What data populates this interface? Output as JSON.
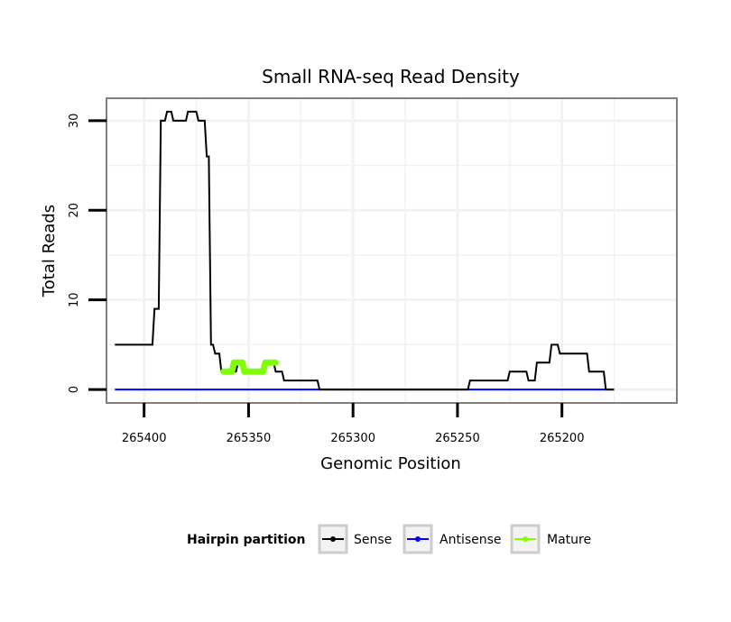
{
  "chart_data": {
    "type": "line",
    "title": "Small RNA-seq Read Density",
    "xlabel": "Genomic Position",
    "ylabel": "Total Reads",
    "x_reversed": true,
    "xlim": [
      265418,
      265145
    ],
    "ylim": [
      -1.5,
      32.5
    ],
    "x_ticks": [
      265400,
      265350,
      265300,
      265250,
      265200
    ],
    "x_tick_labels": [
      "265400",
      "265350",
      "265300",
      "265250",
      "265200"
    ],
    "y_ticks": [
      0,
      10,
      20,
      30
    ],
    "y_tick_labels": [
      "0",
      "10",
      "20",
      "30"
    ],
    "grid": true,
    "legend": {
      "title": "Hairpin partition",
      "placement": "bottom",
      "entries": [
        "Sense",
        "Antisense",
        "Mature"
      ]
    },
    "colors": {
      "Sense": "#000000",
      "Antisense": "#0000ff",
      "Mature": "#7fff00",
      "panel_border": "#7f7f7f",
      "grid": "#f2f2f2"
    },
    "series": [
      {
        "name": "Sense",
        "points": [
          [
            265414,
            5
          ],
          [
            265396,
            5
          ],
          [
            265395,
            9
          ],
          [
            265393,
            9
          ],
          [
            265392,
            30
          ],
          [
            265390,
            30
          ],
          [
            265389,
            31
          ],
          [
            265387,
            31
          ],
          [
            265386,
            30
          ],
          [
            265380,
            30
          ],
          [
            265379,
            31
          ],
          [
            265375,
            31
          ],
          [
            265374,
            30
          ],
          [
            265371,
            30
          ],
          [
            265370,
            26
          ],
          [
            265369,
            26
          ],
          [
            265368,
            5
          ],
          [
            265367,
            5
          ],
          [
            265366,
            4
          ],
          [
            265364,
            4
          ],
          [
            265363,
            2
          ],
          [
            265361,
            2
          ],
          [
            265360,
            2
          ],
          [
            265356,
            2
          ],
          [
            265355,
            3
          ],
          [
            265353,
            3
          ],
          [
            265352,
            2
          ],
          [
            265348,
            2
          ],
          [
            265347,
            2
          ],
          [
            265343,
            2
          ],
          [
            265342,
            3
          ],
          [
            265338,
            3
          ],
          [
            265337,
            2
          ],
          [
            265334,
            2
          ],
          [
            265333,
            1
          ],
          [
            265317,
            1
          ],
          [
            265316,
            0
          ],
          [
            265245,
            0
          ],
          [
            265244,
            1
          ],
          [
            265226,
            1
          ],
          [
            265225,
            2
          ],
          [
            265217,
            2
          ],
          [
            265216,
            1
          ],
          [
            265213,
            1
          ],
          [
            265212,
            3
          ],
          [
            265206,
            3
          ],
          [
            265205,
            5
          ],
          [
            265202,
            5
          ],
          [
            265201,
            4
          ],
          [
            265188,
            4
          ],
          [
            265187,
            2
          ],
          [
            265180,
            2
          ],
          [
            265179,
            0
          ],
          [
            265175,
            0
          ]
        ]
      },
      {
        "name": "Antisense",
        "points": [
          [
            265414,
            0
          ],
          [
            265175,
            0
          ]
        ]
      },
      {
        "name": "Mature",
        "segments": [
          [
            [
              265362,
              2
            ],
            [
              265358,
              2
            ],
            [
              265357,
              3
            ],
            [
              265353,
              3
            ],
            [
              265352,
              2
            ],
            [
              265343,
              2
            ],
            [
              265342,
              3
            ],
            [
              265337,
              3
            ]
          ]
        ]
      }
    ]
  }
}
